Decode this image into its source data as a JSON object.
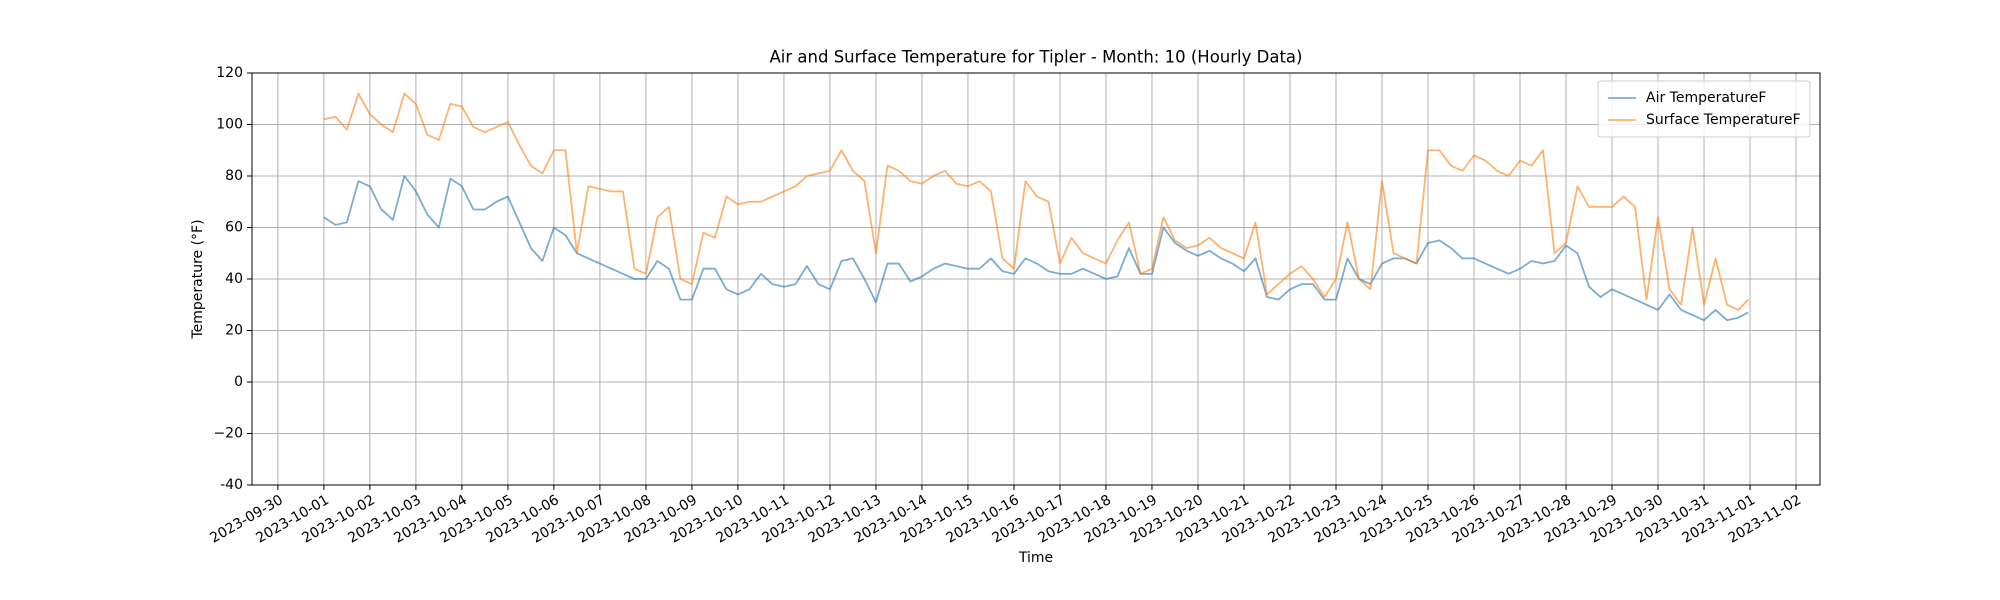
{
  "chart_data": {
    "type": "line",
    "title": "Air and Surface Temperature for Tipler - Month: 10 (Hourly Data)",
    "x_label": "Time",
    "y_label": "Temperature (°F)",
    "x": [
      "2023-10-01T00:00",
      "2023-10-01T06:00",
      "2023-10-01T12:00",
      "2023-10-01T18:00",
      "2023-10-02T00:00",
      "2023-10-02T06:00",
      "2023-10-02T12:00",
      "2023-10-02T18:00",
      "2023-10-03T00:00",
      "2023-10-03T06:00",
      "2023-10-03T12:00",
      "2023-10-03T18:00",
      "2023-10-04T00:00",
      "2023-10-04T06:00",
      "2023-10-04T12:00",
      "2023-10-04T18:00",
      "2023-10-05T00:00",
      "2023-10-05T06:00",
      "2023-10-05T12:00",
      "2023-10-05T18:00",
      "2023-10-06T00:00",
      "2023-10-06T06:00",
      "2023-10-06T12:00",
      "2023-10-06T18:00",
      "2023-10-07T00:00",
      "2023-10-07T06:00",
      "2023-10-07T12:00",
      "2023-10-07T18:00",
      "2023-10-08T00:00",
      "2023-10-08T06:00",
      "2023-10-08T12:00",
      "2023-10-08T18:00",
      "2023-10-09T00:00",
      "2023-10-09T06:00",
      "2023-10-09T12:00",
      "2023-10-09T18:00",
      "2023-10-10T00:00",
      "2023-10-10T06:00",
      "2023-10-10T12:00",
      "2023-10-10T18:00",
      "2023-10-11T00:00",
      "2023-10-11T06:00",
      "2023-10-11T12:00",
      "2023-10-11T18:00",
      "2023-10-12T00:00",
      "2023-10-12T06:00",
      "2023-10-12T12:00",
      "2023-10-12T18:00",
      "2023-10-13T00:00",
      "2023-10-13T06:00",
      "2023-10-13T12:00",
      "2023-10-13T18:00",
      "2023-10-14T00:00",
      "2023-10-14T06:00",
      "2023-10-14T12:00",
      "2023-10-14T18:00",
      "2023-10-15T00:00",
      "2023-10-15T06:00",
      "2023-10-15T12:00",
      "2023-10-15T18:00",
      "2023-10-16T00:00",
      "2023-10-16T06:00",
      "2023-10-16T12:00",
      "2023-10-16T18:00",
      "2023-10-17T00:00",
      "2023-10-17T06:00",
      "2023-10-17T12:00",
      "2023-10-17T18:00",
      "2023-10-18T00:00",
      "2023-10-18T06:00",
      "2023-10-18T12:00",
      "2023-10-18T18:00",
      "2023-10-19T00:00",
      "2023-10-19T06:00",
      "2023-10-19T12:00",
      "2023-10-19T18:00",
      "2023-10-20T00:00",
      "2023-10-20T06:00",
      "2023-10-20T12:00",
      "2023-10-20T18:00",
      "2023-10-21T00:00",
      "2023-10-21T06:00",
      "2023-10-21T12:00",
      "2023-10-21T18:00",
      "2023-10-22T00:00",
      "2023-10-22T06:00",
      "2023-10-22T12:00",
      "2023-10-22T18:00",
      "2023-10-23T00:00",
      "2023-10-23T06:00",
      "2023-10-23T12:00",
      "2023-10-23T18:00",
      "2023-10-24T00:00",
      "2023-10-24T06:00",
      "2023-10-24T12:00",
      "2023-10-24T18:00",
      "2023-10-25T00:00",
      "2023-10-25T06:00",
      "2023-10-25T12:00",
      "2023-10-25T18:00",
      "2023-10-26T00:00",
      "2023-10-26T06:00",
      "2023-10-26T12:00",
      "2023-10-26T18:00",
      "2023-10-27T00:00",
      "2023-10-27T06:00",
      "2023-10-27T12:00",
      "2023-10-27T18:00",
      "2023-10-28T00:00",
      "2023-10-28T06:00",
      "2023-10-28T12:00",
      "2023-10-28T18:00",
      "2023-10-29T00:00",
      "2023-10-29T06:00",
      "2023-10-29T12:00",
      "2023-10-29T18:00",
      "2023-10-30T00:00",
      "2023-10-30T06:00",
      "2023-10-30T12:00",
      "2023-10-30T18:00",
      "2023-10-31T00:00",
      "2023-10-31T06:00",
      "2023-10-31T12:00",
      "2023-10-31T18:00",
      "2023-10-31T23:00"
    ],
    "series": [
      {
        "name": "Air TemperatureF",
        "color": "#1f77b4",
        "values": [
          64,
          61,
          62,
          78,
          76,
          67,
          63,
          80,
          74,
          65,
          60,
          79,
          76,
          67,
          67,
          70,
          72,
          62,
          52,
          47,
          60,
          57,
          50,
          48,
          46,
          44,
          42,
          40,
          40,
          47,
          44,
          32,
          32,
          44,
          44,
          36,
          34,
          36,
          42,
          38,
          37,
          38,
          45,
          38,
          36,
          47,
          48,
          40,
          31,
          46,
          46,
          39,
          41,
          44,
          46,
          45,
          44,
          44,
          48,
          43,
          42,
          48,
          46,
          43,
          42,
          42,
          44,
          42,
          40,
          41,
          52,
          42,
          42,
          60,
          54,
          51,
          49,
          51,
          48,
          46,
          43,
          48,
          33,
          32,
          36,
          38,
          38,
          32,
          32,
          48,
          40,
          38,
          46,
          48,
          48,
          46,
          54,
          55,
          52,
          48,
          48,
          46,
          44,
          42,
          44,
          47,
          46,
          47,
          53,
          50,
          37,
          33,
          36,
          34,
          32,
          30,
          28,
          34,
          28,
          26,
          24,
          28,
          24,
          25,
          27
        ]
      },
      {
        "name": "Surface TemperatureF",
        "color": "#ff7f0e",
        "values": [
          102,
          103,
          98,
          112,
          104,
          100,
          97,
          112,
          108,
          96,
          94,
          108,
          107,
          99,
          97,
          99,
          101,
          92,
          84,
          81,
          90,
          90,
          50,
          76,
          75,
          74,
          74,
          44,
          42,
          64,
          68,
          40,
          38,
          58,
          56,
          72,
          69,
          70,
          70,
          72,
          74,
          76,
          80,
          81,
          82,
          90,
          82,
          78,
          50,
          84,
          82,
          78,
          77,
          80,
          82,
          77,
          76,
          78,
          74,
          48,
          44,
          78,
          72,
          70,
          46,
          56,
          50,
          48,
          46,
          55,
          62,
          42,
          44,
          64,
          55,
          52,
          53,
          56,
          52,
          50,
          48,
          62,
          34,
          38,
          42,
          45,
          40,
          33,
          40,
          62,
          40,
          36,
          78,
          50,
          48,
          46,
          90,
          90,
          84,
          82,
          88,
          86,
          82,
          80,
          86,
          84,
          90,
          50,
          54,
          76,
          68,
          68,
          68,
          72,
          68,
          32,
          64,
          36,
          30,
          60,
          30,
          48,
          30,
          28,
          32
        ]
      }
    ],
    "xlim": [
      "2023-09-29T10:30",
      "2023-11-02T12:30"
    ],
    "xticks": [
      "2023-09-30",
      "2023-10-01",
      "2023-10-02",
      "2023-10-03",
      "2023-10-04",
      "2023-10-05",
      "2023-10-06",
      "2023-10-07",
      "2023-10-08",
      "2023-10-09",
      "2023-10-10",
      "2023-10-11",
      "2023-10-12",
      "2023-10-13",
      "2023-10-14",
      "2023-10-15",
      "2023-10-16",
      "2023-10-17",
      "2023-10-18",
      "2023-10-19",
      "2023-10-20",
      "2023-10-21",
      "2023-10-22",
      "2023-10-23",
      "2023-10-24",
      "2023-10-25",
      "2023-10-26",
      "2023-10-27",
      "2023-10-28",
      "2023-10-29",
      "2023-10-30",
      "2023-10-31",
      "2023-11-01",
      "2023-11-02"
    ],
    "ylim": [
      -40,
      120
    ],
    "yticks": [
      -40,
      {
        "value": -20,
        "label": "−20"
      },
      0,
      20,
      40,
      60,
      80,
      100,
      120
    ],
    "grid": true,
    "legend": "upper right"
  }
}
